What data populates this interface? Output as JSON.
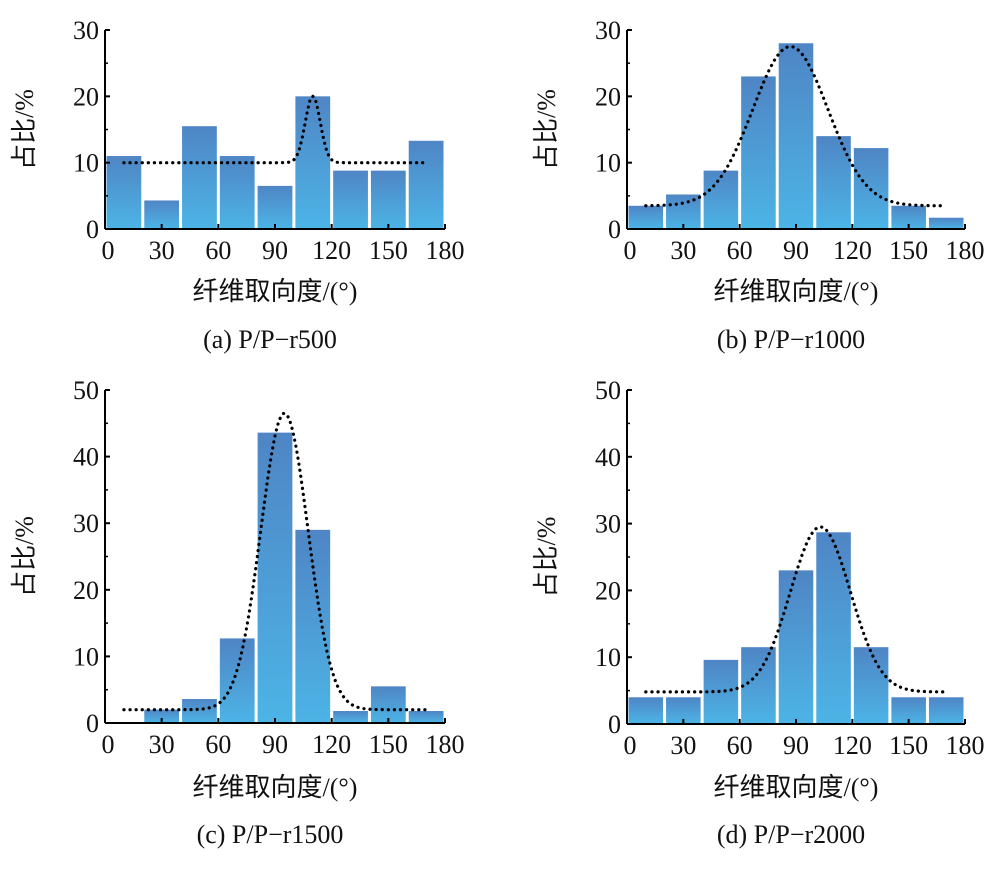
{
  "chart_data": [
    {
      "type": "bar",
      "title": "(a) P/P−r500",
      "xlabel": "纤维取向度/(°)",
      "ylabel": "占比/%",
      "xlim": [
        0,
        180
      ],
      "ylim": [
        0,
        30
      ],
      "xticks": [
        0,
        30,
        60,
        90,
        120,
        150,
        180
      ],
      "yticks": [
        0,
        10,
        20,
        30
      ],
      "bin_width": 20,
      "bin_starts": [
        0,
        20,
        40,
        60,
        80,
        100,
        120,
        140,
        160
      ],
      "values": [
        11,
        4.3,
        15.5,
        11,
        6.5,
        20,
        8.8,
        8.8,
        13.3
      ],
      "fit": {
        "style": "dotted",
        "baseline": 10,
        "amplitude": 10,
        "center": 110,
        "sigma": 4,
        "range": [
          10,
          170
        ]
      }
    },
    {
      "type": "bar",
      "title": "(b) P/P−r1000",
      "xlabel": "纤维取向度/(°)",
      "ylabel": "占比/%",
      "xlim": [
        0,
        180
      ],
      "ylim": [
        0,
        30
      ],
      "xticks": [
        0,
        30,
        60,
        90,
        120,
        150,
        180
      ],
      "yticks": [
        0,
        10,
        20,
        30
      ],
      "bin_width": 20,
      "bin_starts": [
        0,
        20,
        40,
        60,
        80,
        100,
        120,
        140,
        160
      ],
      "values": [
        3.5,
        5.2,
        8.8,
        23,
        28,
        14,
        12.2,
        3.5,
        1.7
      ],
      "fit": {
        "style": "dotted",
        "baseline": 3.5,
        "amplitude": 24,
        "center": 87,
        "sigma": 20,
        "range": [
          10,
          170
        ]
      }
    },
    {
      "type": "bar",
      "title": "(c) P/P−r1500",
      "xlabel": "纤维取向度/(°)",
      "ylabel": "占比/%",
      "xlim": [
        0,
        180
      ],
      "ylim": [
        0,
        50
      ],
      "xticks": [
        0,
        30,
        60,
        90,
        120,
        150,
        180
      ],
      "yticks": [
        0,
        10,
        20,
        30,
        40,
        50
      ],
      "bin_width": 20,
      "bin_starts": [
        0,
        20,
        40,
        60,
        80,
        100,
        120,
        140,
        160
      ],
      "values": [
        0,
        2,
        3.6,
        12.7,
        43.6,
        29,
        1.8,
        5.5,
        1.8
      ],
      "fit": {
        "style": "dotted",
        "baseline": 2,
        "amplitude": 44.5,
        "center": 95,
        "sigma": 12.5,
        "range": [
          10,
          170
        ]
      }
    },
    {
      "type": "bar",
      "title": "(d) P/P−r2000",
      "xlabel": "纤维取向度/(°)",
      "ylabel": "占比/%",
      "xlim": [
        0,
        180
      ],
      "ylim": [
        0,
        50
      ],
      "xticks": [
        0,
        30,
        60,
        90,
        120,
        150,
        180
      ],
      "yticks": [
        0,
        10,
        20,
        30,
        40,
        50
      ],
      "bin_width": 20,
      "bin_starts": [
        0,
        20,
        40,
        60,
        80,
        100,
        120,
        140,
        160
      ],
      "values": [
        4,
        4,
        9.6,
        11.5,
        23,
        28.7,
        11.5,
        4,
        4
      ],
      "fit": {
        "style": "dotted",
        "baseline": 4.8,
        "amplitude": 24.7,
        "center": 103,
        "sigma": 16,
        "range": [
          10,
          170
        ]
      }
    }
  ],
  "colors": {
    "bar_top": "#4f85c5",
    "bar_bottom": "#4cb4e6",
    "axis": "#000000",
    "fit": "#000000"
  }
}
